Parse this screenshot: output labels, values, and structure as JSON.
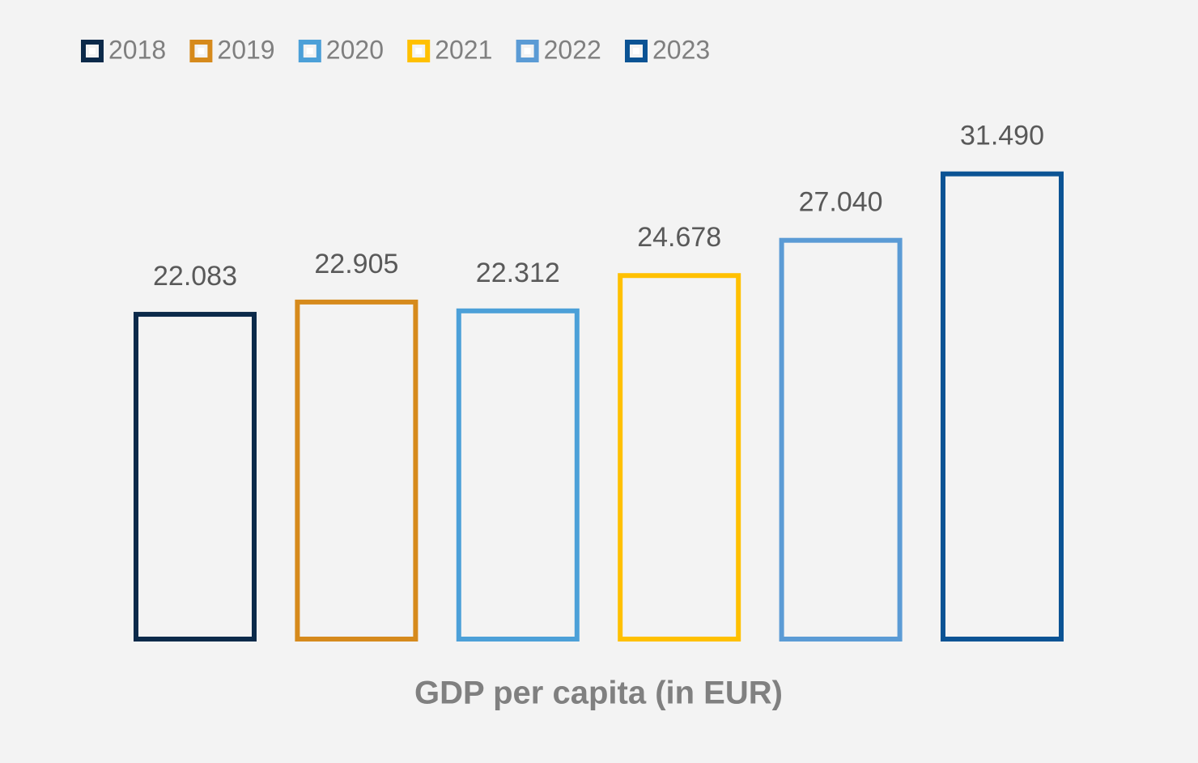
{
  "chart_data": {
    "type": "bar",
    "categories": [
      "GDP per capita (in EUR)"
    ],
    "series": [
      {
        "name": "2018",
        "color": "#0c2a4a",
        "values": [
          22083
        ],
        "value_labels": [
          "22.083"
        ]
      },
      {
        "name": "2019",
        "color": "#d68a1c",
        "values": [
          22905
        ],
        "value_labels": [
          "22.905"
        ]
      },
      {
        "name": "2020",
        "color": "#4ca0d8",
        "values": [
          22312
        ],
        "value_labels": [
          "22.312"
        ]
      },
      {
        "name": "2021",
        "color": "#ffc000",
        "values": [
          24678
        ],
        "value_labels": [
          "24.678"
        ]
      },
      {
        "name": "2022",
        "color": "#5b9bd5",
        "values": [
          27040
        ],
        "value_labels": [
          "27.040"
        ]
      },
      {
        "name": "2023",
        "color": "#0b5394",
        "values": [
          31490
        ],
        "value_labels": [
          "31.490"
        ]
      }
    ],
    "ylim": [
      0,
      35000
    ],
    "legend": "top-left"
  }
}
